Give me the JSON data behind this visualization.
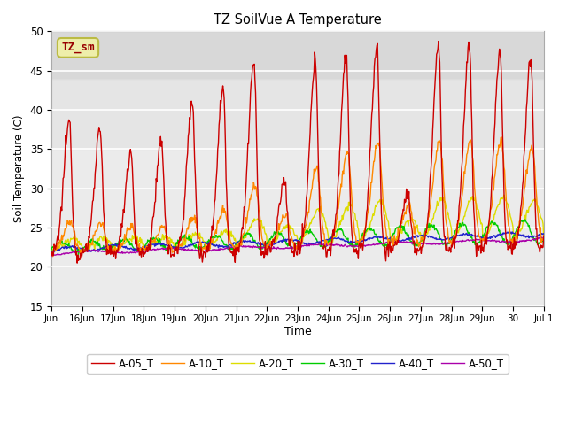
{
  "title": "TZ SoilVue A Temperature",
  "ylabel": "Soil Temperature (C)",
  "xlabel": "Time",
  "ylim": [
    15,
    50
  ],
  "yticks": [
    15,
    20,
    25,
    30,
    35,
    40,
    45,
    50
  ],
  "background_color": "#ffffff",
  "plot_bg_color": "#ebebeb",
  "shaded_band_y1": 44,
  "shaded_band_y2": 50,
  "shaded_band_color": "#d8d8d8",
  "annotation_label": "TZ_sm",
  "series_colors": {
    "A-05_T": "#cc0000",
    "A-10_T": "#ff8800",
    "A-20_T": "#dddd00",
    "A-30_T": "#00cc00",
    "A-40_T": "#2222cc",
    "A-50_T": "#aa00aa"
  },
  "x_tick_labels": [
    "Jun",
    "16Jun",
    "17Jun",
    "18Jun",
    "19Jun",
    "20Jun",
    "21Jun",
    "22Jun",
    "23Jun",
    "24Jun",
    "25Jun",
    "26Jun",
    "27Jun",
    "28Jun",
    "29Jun",
    "30",
    "Jul 1"
  ],
  "x_tick_positions": [
    0,
    1,
    2,
    3,
    4,
    5,
    6,
    7,
    8,
    9,
    10,
    11,
    12,
    13,
    14,
    15,
    16
  ],
  "duration_days": 16.0,
  "samples_per_day": 48
}
